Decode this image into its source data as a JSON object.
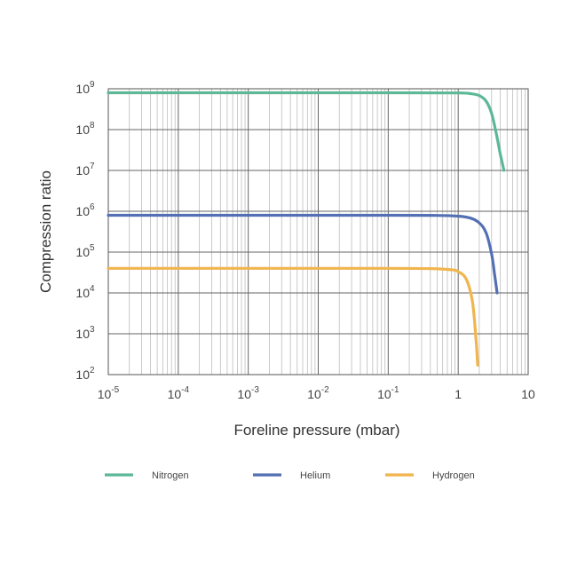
{
  "chart_data": {
    "type": "line",
    "xlabel": "Foreline pressure (mbar)",
    "ylabel": "Compression ratio",
    "x_scale": "log",
    "y_scale": "log",
    "xlim": [
      1e-05,
      10
    ],
    "ylim": [
      100,
      1000000000
    ],
    "grid": true,
    "legend_placement": "bottom",
    "x_ticks": [
      {
        "value": 1e-05,
        "base": "10",
        "exp": "-5"
      },
      {
        "value": 0.0001,
        "base": "10",
        "exp": "-4"
      },
      {
        "value": 0.001,
        "base": "10",
        "exp": "-3"
      },
      {
        "value": 0.01,
        "base": "10",
        "exp": "-2"
      },
      {
        "value": 0.1,
        "base": "10",
        "exp": "-1"
      },
      {
        "value": 1,
        "base": "1",
        "exp": ""
      },
      {
        "value": 10,
        "base": "10",
        "exp": ""
      }
    ],
    "y_ticks": [
      {
        "value": 100,
        "base": "10",
        "exp": "2"
      },
      {
        "value": 1000,
        "base": "10",
        "exp": "3"
      },
      {
        "value": 10000,
        "base": "10",
        "exp": "4"
      },
      {
        "value": 100000,
        "base": "10",
        "exp": "5"
      },
      {
        "value": 1000000,
        "base": "10",
        "exp": "6"
      },
      {
        "value": 10000000,
        "base": "10",
        "exp": "7"
      },
      {
        "value": 100000000,
        "base": "10",
        "exp": "8"
      },
      {
        "value": 1000000000,
        "base": "10",
        "exp": "9"
      }
    ],
    "series": [
      {
        "name": "Nitrogen",
        "color": "#5cb896",
        "x": [
          1e-05,
          0.001,
          0.1,
          1,
          1.5,
          2,
          2.5,
          3,
          3.5,
          4,
          4.5
        ],
        "y": [
          800000000,
          800000000,
          800000000,
          790000000,
          760000000,
          680000000,
          500000000,
          250000000,
          80000000,
          25000000,
          10000000
        ]
      },
      {
        "name": "Helium",
        "color": "#5470b4",
        "x": [
          1e-05,
          0.001,
          0.1,
          0.5,
          1,
          1.5,
          2,
          2.5,
          3,
          3.3,
          3.6
        ],
        "y": [
          800000,
          800000,
          800000,
          790000,
          760000,
          680000,
          520000,
          300000,
          90000,
          30000,
          10000
        ]
      },
      {
        "name": "Hydrogen",
        "color": "#f0b54e",
        "x": [
          1e-05,
          0.001,
          0.1,
          0.4,
          0.8,
          1,
          1.3,
          1.6,
          1.8,
          1.9
        ],
        "y": [
          40000,
          40000,
          40000,
          39500,
          37000,
          33000,
          22000,
          6000,
          700,
          170
        ]
      }
    ]
  }
}
